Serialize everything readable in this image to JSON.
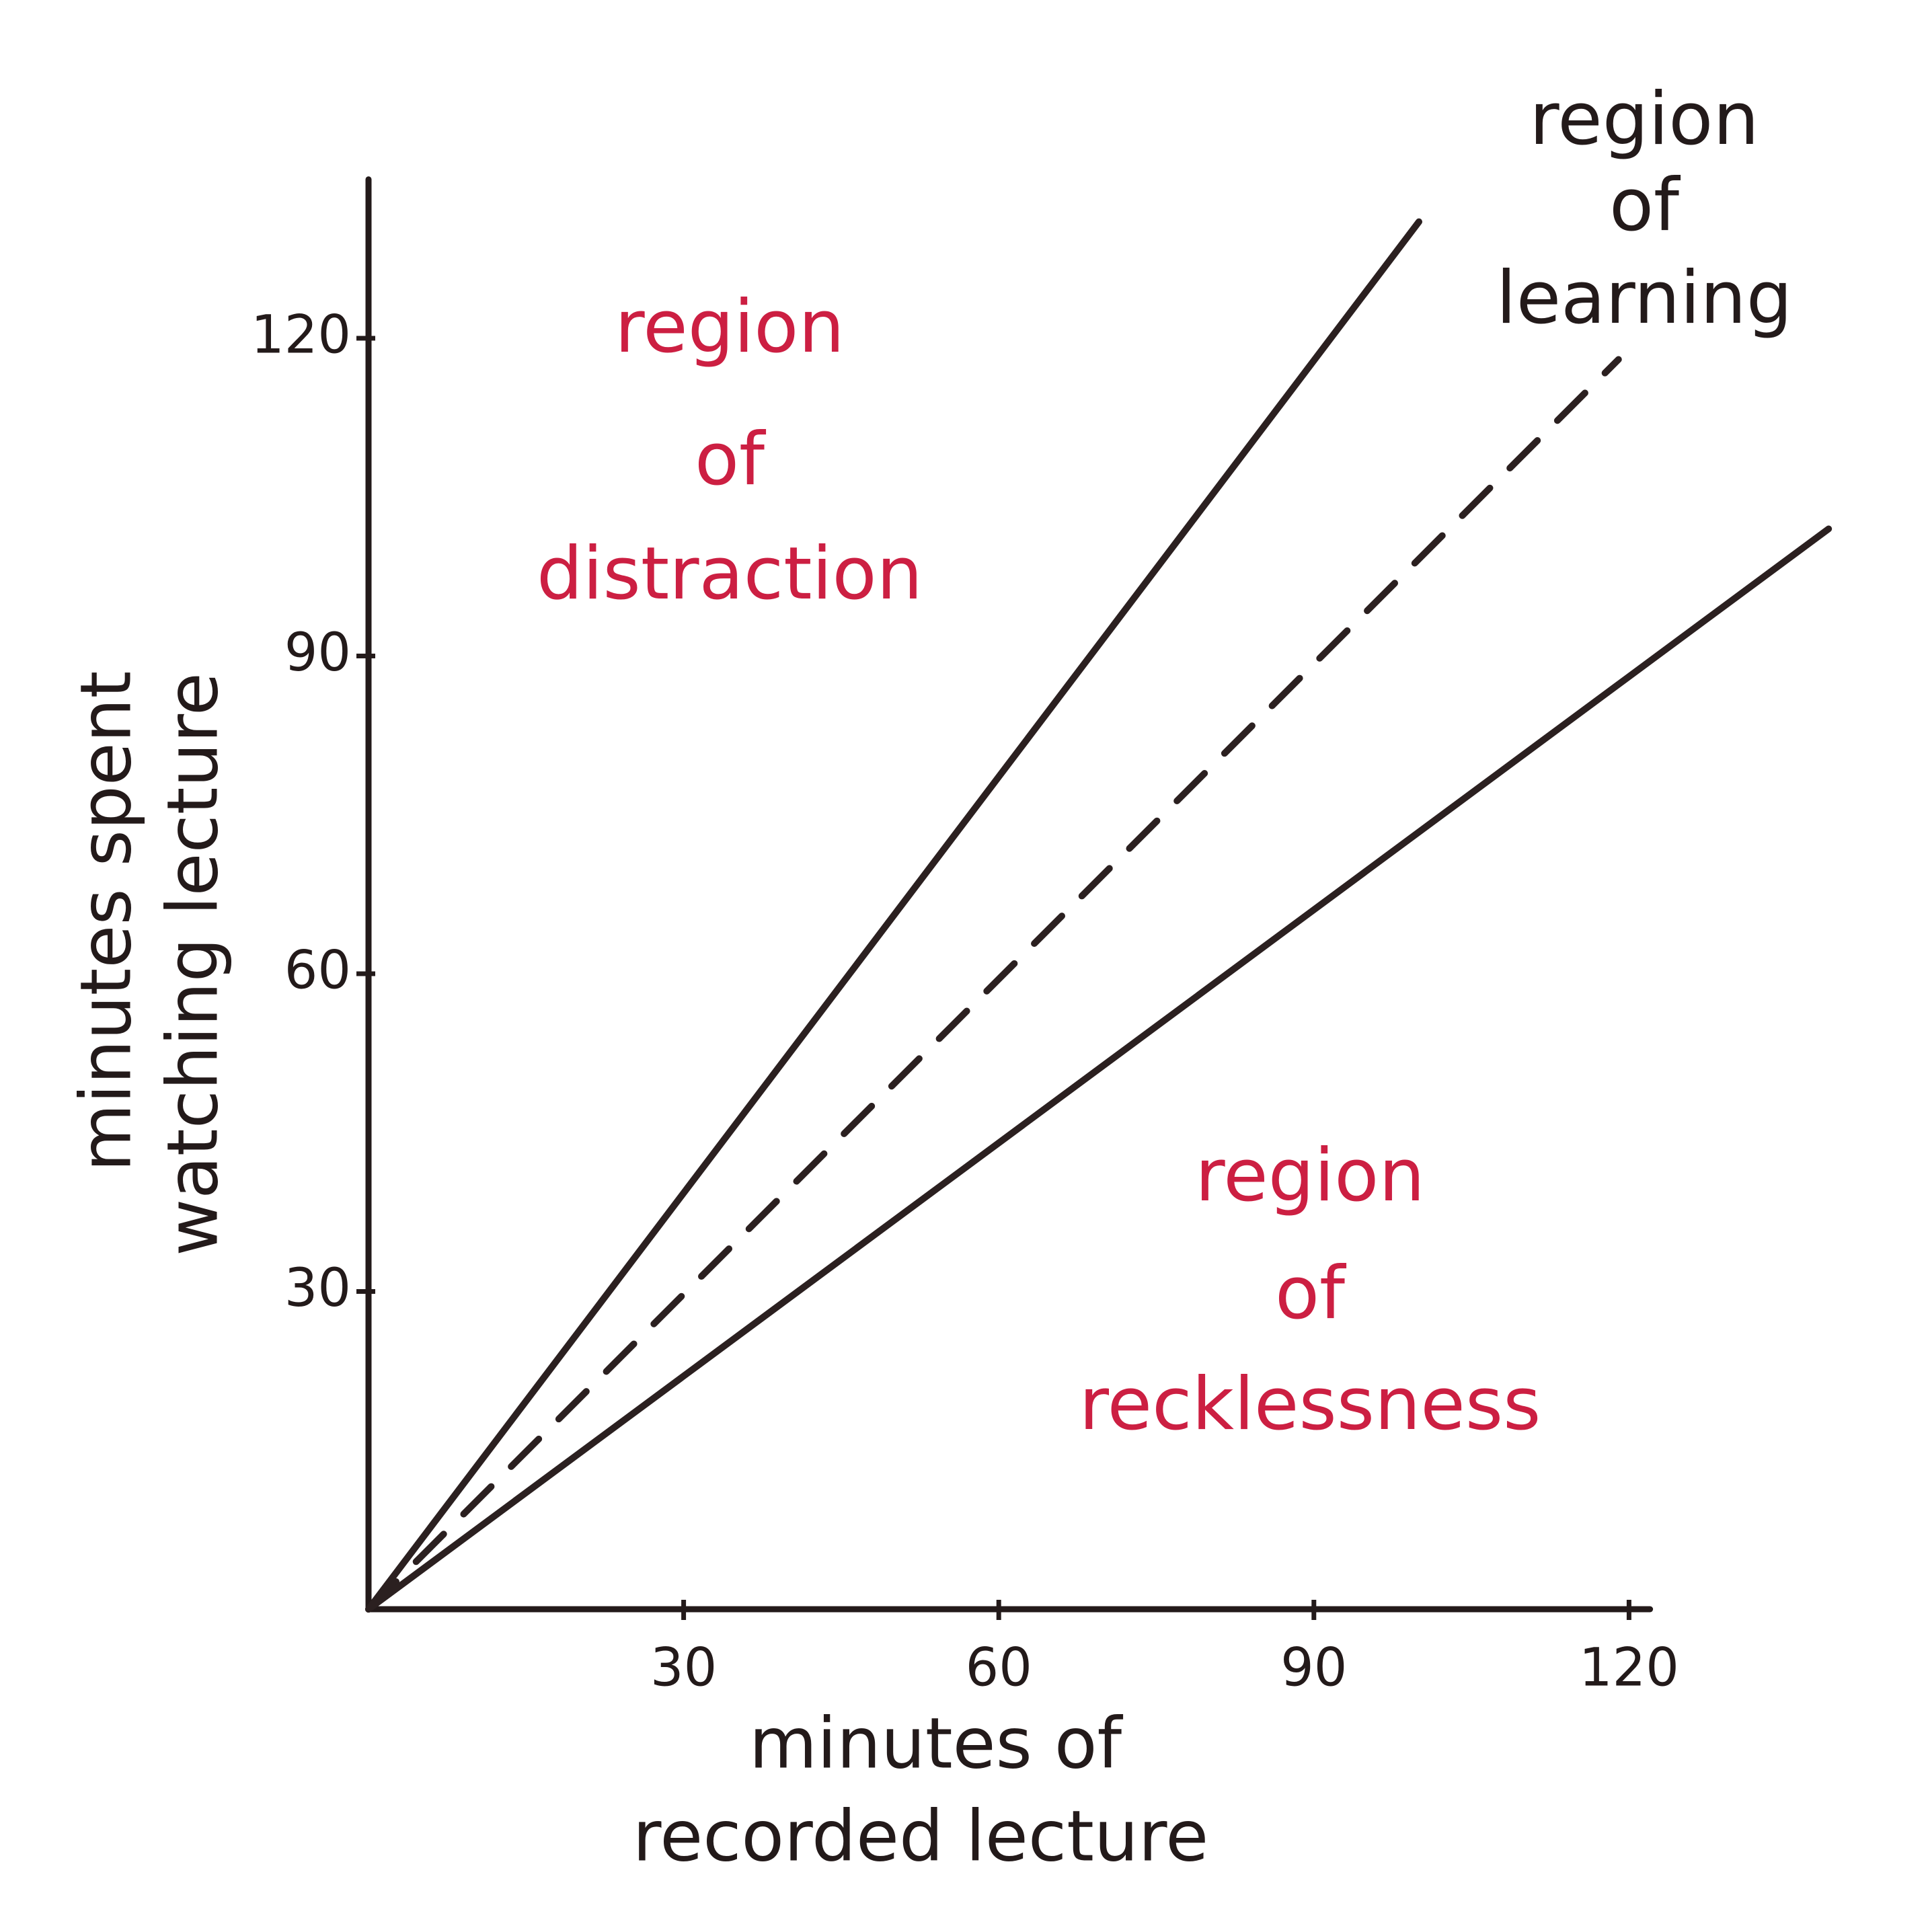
{
  "chart_data": {
    "type": "line",
    "xlabel": [
      "minutes of",
      "recorded lecture"
    ],
    "ylabel": [
      "minutes spent",
      "watching lecture"
    ],
    "xlim": [
      0,
      122
    ],
    "ylim": [
      0,
      135
    ],
    "xticks": [
      30,
      60,
      90,
      120
    ],
    "yticks": [
      30,
      60,
      90,
      120
    ],
    "grid": false,
    "series": [
      {
        "color": "#2b2020",
        "dashed": false,
        "x": [
          0,
          100
        ],
        "values": [
          0,
          131
        ]
      },
      {
        "color": "#2b2020",
        "dashed": true,
        "x": [
          0,
          119
        ],
        "values": [
          0,
          118
        ]
      },
      {
        "color": "#2b2020",
        "dashed": false,
        "x": [
          0,
          139
        ],
        "values": [
          0,
          102
        ]
      }
    ],
    "annotations": [
      {
        "lines": [
          "region",
          "of",
          "distraction"
        ],
        "color": "#cc1f42"
      },
      {
        "lines": [
          "region",
          "of",
          "learning"
        ],
        "color": "#231a1a"
      },
      {
        "lines": [
          "region",
          "of",
          "recklessness"
        ],
        "color": "#cc1f42"
      }
    ]
  }
}
